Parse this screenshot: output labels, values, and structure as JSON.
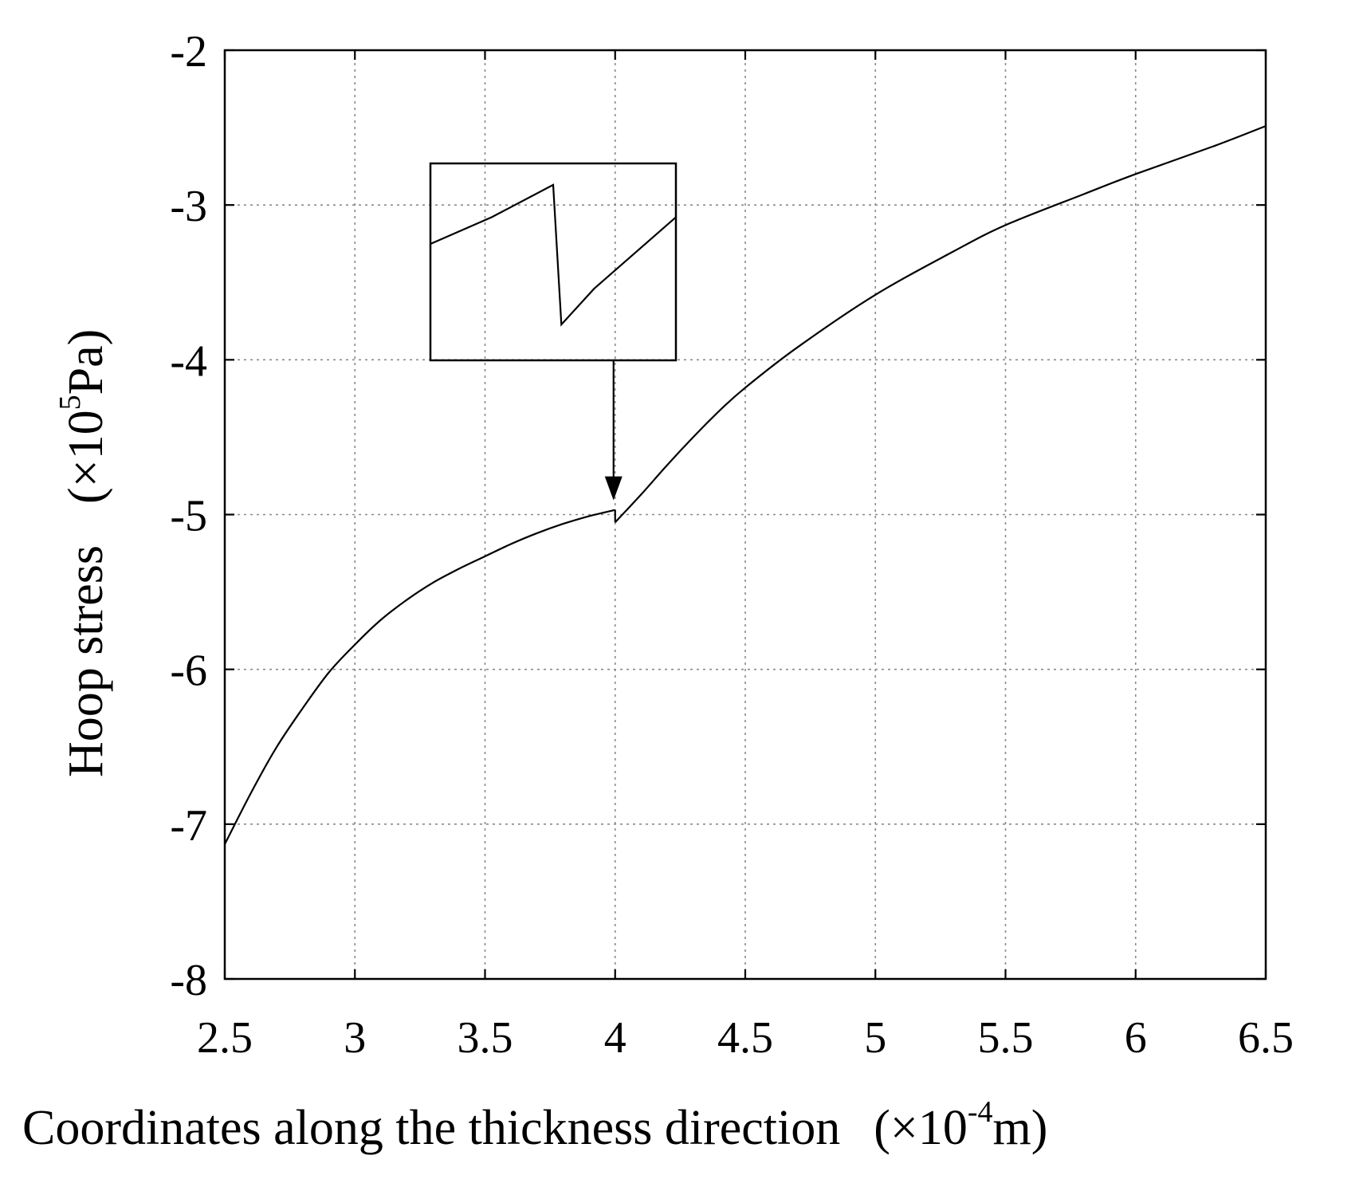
{
  "chart_data": {
    "type": "line",
    "title": "",
    "xlabel": {
      "main": "Coordinates along the thickness direction",
      "unit_open": "(×10",
      "unit_sup": "-4",
      "unit_close": "m)"
    },
    "ylabel": {
      "main": "Hoop stress",
      "unit_open": "(×10",
      "unit_sup": "5",
      "unit_close": "Pa)"
    },
    "xlim": [
      2.5,
      6.5
    ],
    "ylim": [
      -8,
      -2
    ],
    "xticks": [
      2.5,
      3,
      3.5,
      4,
      4.5,
      5,
      5.5,
      6,
      6.5
    ],
    "yticks": [
      -8,
      -7,
      -6,
      -5,
      -4,
      -3,
      -2
    ],
    "xtick_labels": [
      "2.5",
      "3",
      "3.5",
      "4",
      "4.5",
      "5",
      "5.5",
      "6",
      "6.5"
    ],
    "ytick_labels": [
      "-8",
      "-7",
      "-6",
      "-5",
      "-4",
      "-3",
      "-2"
    ],
    "grid": true,
    "legend": "none",
    "series": [
      {
        "x": [
          2.5,
          2.6,
          2.7,
          2.8,
          2.9,
          3.0,
          3.1,
          3.2,
          3.3,
          3.4,
          3.5,
          3.6,
          3.7,
          3.8,
          3.9,
          4.0
        ],
        "y": [
          -7.13,
          -6.8,
          -6.5,
          -6.25,
          -6.02,
          -5.84,
          -5.68,
          -5.55,
          -5.44,
          -5.35,
          -5.27,
          -5.19,
          -5.12,
          -5.06,
          -5.01,
          -4.97
        ]
      },
      {
        "x": [
          4.0,
          4.1,
          4.2,
          4.3,
          4.4,
          4.5,
          4.7,
          5.0,
          5.3,
          5.5,
          5.8,
          6.0,
          6.3,
          6.5
        ],
        "y": [
          -5.05,
          -4.87,
          -4.68,
          -4.5,
          -4.33,
          -4.18,
          -3.92,
          -3.58,
          -3.3,
          -3.13,
          -2.93,
          -2.8,
          -2.62,
          -2.49
        ]
      }
    ],
    "annotations": [
      {
        "type": "inset-zoom",
        "target_x": 4.0,
        "target_y": -4.97,
        "description_series": {
          "x": [
            3.97,
            3.985,
            4.0,
            4.002,
            4.01,
            4.03
          ],
          "y": [
            -5.005,
            -4.99,
            -4.972,
            -5.05,
            -5.03,
            -4.99
          ]
        }
      }
    ],
    "colors": {
      "line": "#000000",
      "grid": "#8a8a8a"
    }
  }
}
